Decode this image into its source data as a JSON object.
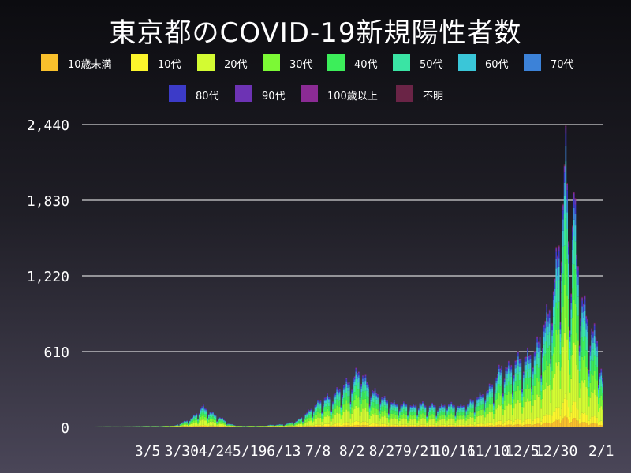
{
  "title": "東京都のCOVID-19新規陽性者数",
  "colors": {
    "background_top": "#0c0c10",
    "background_bottom": "#4a4658",
    "gridline": "#ffffff",
    "text": "#ffffff"
  },
  "legend": [
    {
      "label": "10歳未満",
      "color": "#f9c02c"
    },
    {
      "label": "10代",
      "color": "#fcf52c"
    },
    {
      "label": "20代",
      "color": "#d3fb32"
    },
    {
      "label": "30代",
      "color": "#7cf935"
    },
    {
      "label": "40代",
      "color": "#3cee5a"
    },
    {
      "label": "50代",
      "color": "#3ae4a4"
    },
    {
      "label": "60代",
      "color": "#3ac6d8"
    },
    {
      "label": "70代",
      "color": "#3c82d8"
    },
    {
      "label": "80代",
      "color": "#3c3bc8"
    },
    {
      "label": "90代",
      "color": "#6d33b4"
    },
    {
      "label": "100歳以上",
      "color": "#8b2b94"
    },
    {
      "label": "不明",
      "color": "#6a2446"
    }
  ],
  "chart_data": {
    "type": "bar",
    "stacked": true,
    "title": "東京都のCOVID-19新規陽性者数",
    "xlabel": "",
    "ylabel": "",
    "ylim": [
      0,
      2440
    ],
    "yticks": [
      0,
      610,
      1220,
      1830,
      2440
    ],
    "ytick_labels": [
      "0",
      "610",
      "1,220",
      "1,830",
      "2,440"
    ],
    "grid": true,
    "legend_position": "top",
    "xtick_labels": [
      "3/5",
      "3/30",
      "4/24",
      "5/19",
      "6/13",
      "7/8",
      "8/2",
      "8/27",
      "9/21",
      "10/16",
      "11/10",
      "12/5",
      "12/30",
      "2/1"
    ],
    "xtick_day_index": [
      40,
      65,
      90,
      115,
      140,
      165,
      190,
      215,
      240,
      265,
      290,
      315,
      340,
      373
    ],
    "day_count": 375,
    "daily_totals_keyframes": [
      [
        0,
        0
      ],
      [
        10,
        2
      ],
      [
        20,
        1
      ],
      [
        30,
        3
      ],
      [
        40,
        6
      ],
      [
        50,
        5
      ],
      [
        55,
        10
      ],
      [
        60,
        14
      ],
      [
        65,
        40
      ],
      [
        70,
        60
      ],
      [
        75,
        100
      ],
      [
        80,
        170
      ],
      [
        83,
        150
      ],
      [
        87,
        120
      ],
      [
        90,
        100
      ],
      [
        95,
        70
      ],
      [
        100,
        30
      ],
      [
        105,
        14
      ],
      [
        110,
        6
      ],
      [
        115,
        10
      ],
      [
        120,
        8
      ],
      [
        125,
        12
      ],
      [
        130,
        20
      ],
      [
        140,
        25
      ],
      [
        145,
        40
      ],
      [
        150,
        55
      ],
      [
        155,
        100
      ],
      [
        160,
        150
      ],
      [
        165,
        200
      ],
      [
        170,
        240
      ],
      [
        175,
        250
      ],
      [
        180,
        300
      ],
      [
        185,
        350
      ],
      [
        190,
        380
      ],
      [
        193,
        430
      ],
      [
        196,
        460
      ],
      [
        200,
        380
      ],
      [
        205,
        300
      ],
      [
        210,
        260
      ],
      [
        215,
        220
      ],
      [
        220,
        200
      ],
      [
        225,
        180
      ],
      [
        230,
        190
      ],
      [
        235,
        170
      ],
      [
        240,
        200
      ],
      [
        245,
        170
      ],
      [
        250,
        180
      ],
      [
        255,
        170
      ],
      [
        260,
        190
      ],
      [
        265,
        180
      ],
      [
        270,
        170
      ],
      [
        275,
        190
      ],
      [
        280,
        230
      ],
      [
        285,
        260
      ],
      [
        290,
        300
      ],
      [
        295,
        380
      ],
      [
        300,
        500
      ],
      [
        305,
        480
      ],
      [
        310,
        540
      ],
      [
        315,
        560
      ],
      [
        320,
        580
      ],
      [
        325,
        620
      ],
      [
        330,
        800
      ],
      [
        335,
        950
      ],
      [
        338,
        1100
      ],
      [
        340,
        1300
      ],
      [
        343,
        1550
      ],
      [
        345,
        1800
      ],
      [
        347,
        2440
      ],
      [
        349,
        1500
      ],
      [
        351,
        1350
      ],
      [
        353,
        1900
      ],
      [
        355,
        1400
      ],
      [
        358,
        1100
      ],
      [
        362,
        900
      ],
      [
        366,
        800
      ],
      [
        370,
        700
      ],
      [
        374,
        400
      ]
    ],
    "age_share": [
      0.04,
      0.07,
      0.25,
      0.18,
      0.15,
      0.12,
      0.07,
      0.05,
      0.04,
      0.02,
      0.005,
      0.005
    ]
  }
}
